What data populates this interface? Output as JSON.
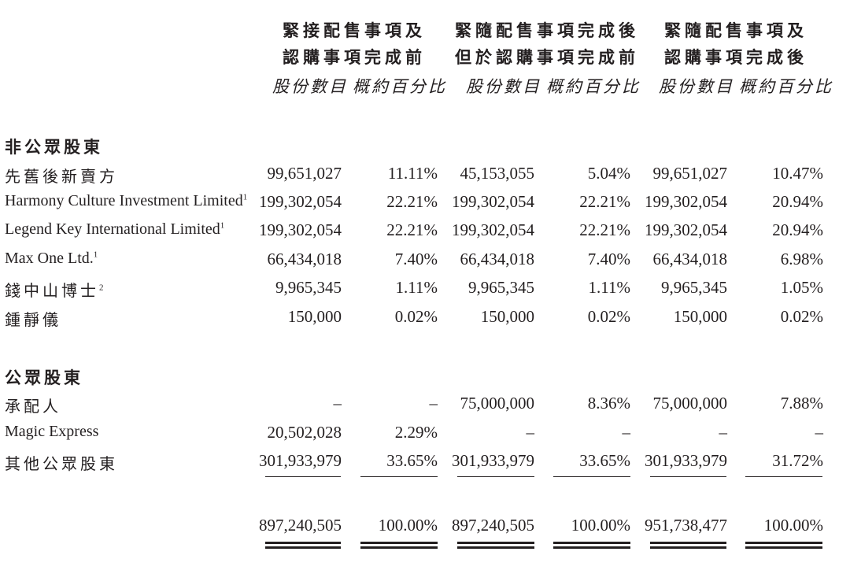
{
  "headers": [
    {
      "line1": "緊接配售事項及",
      "line2": "認購事項完成前"
    },
    {
      "line1": "緊隨配售事項完成後",
      "line2": "但於認購事項完成前"
    },
    {
      "line1": "緊隨配售事項及",
      "line2": "認購事項完成後"
    }
  ],
  "subheaders": {
    "shares": "股份數目",
    "percent": "概約百分比"
  },
  "sections": {
    "non_public": "非公眾股東",
    "public": "公眾股東"
  },
  "rows": [
    {
      "label": "先舊後新賣方",
      "sup": "",
      "values": [
        "99,651,027",
        "11.11%",
        "45,153,055",
        "5.04%",
        "99,651,027",
        "10.47%"
      ]
    },
    {
      "label": "Harmony Culture Investment Limited",
      "sup": "1",
      "values": [
        "199,302,054",
        "22.21%",
        "199,302,054",
        "22.21%",
        "199,302,054",
        "20.94%"
      ]
    },
    {
      "label": "Legend Key International Limited",
      "sup": "1",
      "values": [
        "199,302,054",
        "22.21%",
        "199,302,054",
        "22.21%",
        "199,302,054",
        "20.94%"
      ]
    },
    {
      "label": "Max One Ltd.",
      "sup": "1",
      "values": [
        "66,434,018",
        "7.40%",
        "66,434,018",
        "7.40%",
        "66,434,018",
        "6.98%"
      ]
    },
    {
      "label": "錢中山博士",
      "sup": "2",
      "values": [
        "9,965,345",
        "1.11%",
        "9,965,345",
        "1.11%",
        "9,965,345",
        "1.05%"
      ]
    },
    {
      "label": "鍾靜儀",
      "sup": "",
      "values": [
        "150,000",
        "0.02%",
        "150,000",
        "0.02%",
        "150,000",
        "0.02%"
      ]
    },
    {
      "label": "承配人",
      "sup": "",
      "values": [
        "–",
        "–",
        "75,000,000",
        "8.36%",
        "75,000,000",
        "7.88%"
      ]
    },
    {
      "label": "Magic Express",
      "sup": "",
      "values": [
        "20,502,028",
        "2.29%",
        "–",
        "–",
        "–",
        "–"
      ]
    },
    {
      "label": "其他公眾股東",
      "sup": "",
      "values": [
        "301,933,979",
        "33.65%",
        "301,933,979",
        "33.65%",
        "301,933,979",
        "31.72%"
      ]
    }
  ],
  "totals": [
    "897,240,505",
    "100.00%",
    "897,240,505",
    "100.00%",
    "951,738,477",
    "100.00%"
  ]
}
